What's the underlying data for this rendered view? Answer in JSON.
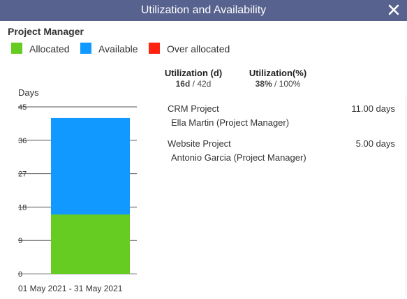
{
  "window": {
    "title": "Utilization and Availability",
    "close_icon": "close-icon"
  },
  "role": "Project Manager",
  "legend": [
    {
      "label": "Allocated",
      "color": "#66cc22"
    },
    {
      "label": "Available",
      "color": "#1199ff"
    },
    {
      "label": "Over allocated",
      "color": "#ff2211"
    }
  ],
  "summary": {
    "utilization_days": {
      "label": "Utilization (d)",
      "used": "16d",
      "separator": " / ",
      "total": "42d"
    },
    "utilization_pct": {
      "label": "Utilization(%)",
      "used": "38%",
      "separator": " / ",
      "total": "100%"
    }
  },
  "chart_data": {
    "type": "bar",
    "stacked": true,
    "ylabel": "Days",
    "ylim": [
      0,
      45
    ],
    "yticks": [
      0,
      9,
      18,
      27,
      36,
      45
    ],
    "categories": [
      "01 May 2021 - 31 May 2021"
    ],
    "series": [
      {
        "name": "Allocated",
        "color": "#66cc22",
        "values": [
          16
        ]
      },
      {
        "name": "Available",
        "color": "#1199ff",
        "values": [
          26
        ]
      }
    ],
    "grid": true
  },
  "projects": [
    {
      "name": "CRM Project",
      "days": "11.00 days",
      "manager": "Ella Martin (Project Manager)"
    },
    {
      "name": "Website Project",
      "days": "5.00 days",
      "manager": "Antonio Garcia (Project Manager)"
    }
  ]
}
